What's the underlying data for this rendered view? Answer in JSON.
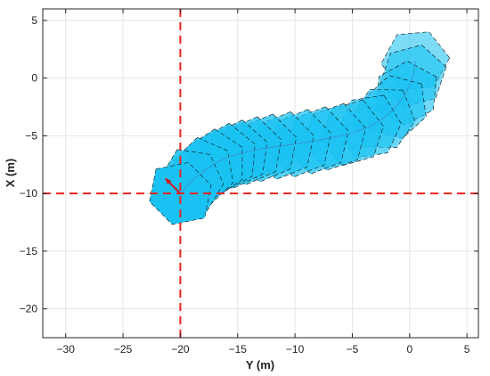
{
  "chart_data": {
    "type": "line",
    "title": "",
    "xlabel": "Y (m)",
    "ylabel": "X (m)",
    "xlim": [
      -32,
      6
    ],
    "ylim": [
      -22.5,
      6
    ],
    "xticks": [
      -30,
      -25,
      -20,
      -15,
      -10,
      -5,
      0,
      5
    ],
    "yticks": [
      5,
      0,
      -5,
      -10,
      -15,
      -20
    ],
    "xtick_labels": [
      "−30",
      "−25",
      "−20",
      "−15",
      "−10",
      "−5",
      "0",
      "5"
    ],
    "ytick_labels": [
      "5",
      "0",
      "−5",
      "−10",
      "−15",
      "−20"
    ],
    "grid": true,
    "reference_lines": [
      {
        "orientation": "vertical",
        "value": -20,
        "color": "#e8231f",
        "style": "dashed"
      },
      {
        "orientation": "horizontal",
        "value": -10,
        "color": "#e8231f",
        "style": "dashed"
      }
    ],
    "start_arrow": {
      "x": -20,
      "y": -10,
      "dx": -1.3,
      "dy": 1.3,
      "color": "#d8121b"
    },
    "series": [
      {
        "style": "footprints",
        "color": "#19c2f2",
        "edge_color": "#111111",
        "x": [
          -20,
          -19.0,
          -18.0,
          -17.0,
          -16.0,
          -15.0,
          -13.8,
          -12.5,
          -11.0,
          -9.5,
          -8.0,
          -6.5,
          -5.0,
          -3.5,
          -2.3,
          -1.2,
          -0.3,
          0.3,
          0.5
        ],
        "y": [
          -10,
          -8.9,
          -8.1,
          -7.4,
          -6.9,
          -6.6,
          -6.3,
          -6.05,
          -5.85,
          -5.65,
          -5.4,
          -5.1,
          -4.75,
          -4.2,
          -3.5,
          -2.5,
          -1.3,
          0.2,
          1.5
        ],
        "heading_deg": [
          135,
          115,
          100,
          90,
          85,
          82,
          80,
          79,
          78,
          78,
          77,
          75,
          72,
          65,
          55,
          42,
          28,
          15,
          5
        ]
      }
    ]
  }
}
